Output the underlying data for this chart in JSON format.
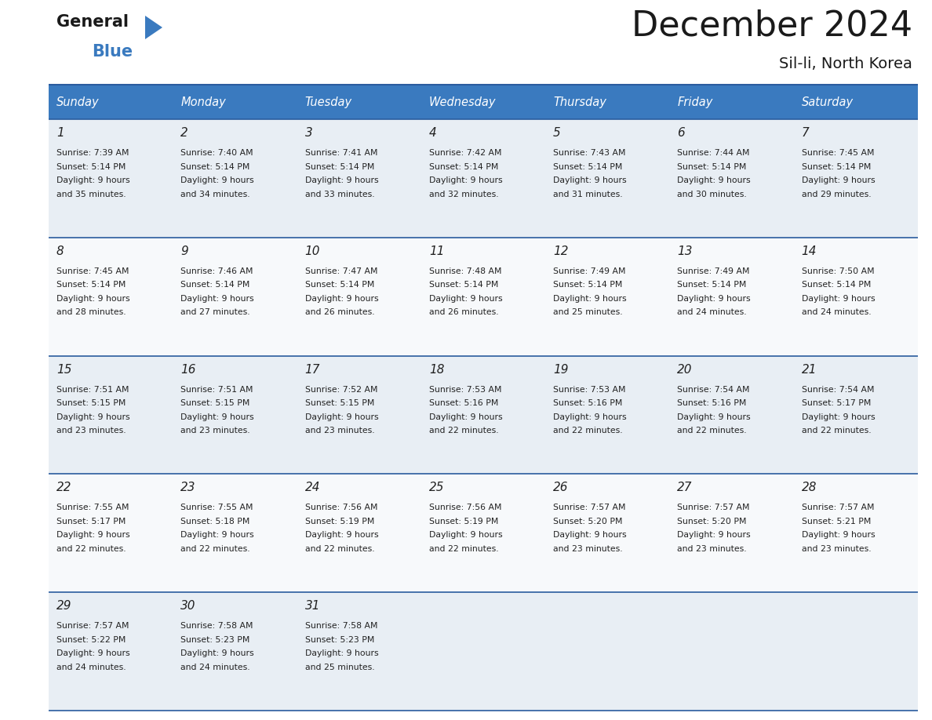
{
  "title": "December 2024",
  "subtitle": "Sil-li, North Korea",
  "header_color": "#3a7abf",
  "header_text_color": "#ffffff",
  "cell_bg_even": "#e8eef4",
  "cell_bg_odd": "#f7f9fb",
  "border_color": "#2a5c9e",
  "text_color": "#222222",
  "days_of_week": [
    "Sunday",
    "Monday",
    "Tuesday",
    "Wednesday",
    "Thursday",
    "Friday",
    "Saturday"
  ],
  "weeks": [
    [
      {
        "day": 1,
        "sunrise": "7:39 AM",
        "sunset": "5:14 PM",
        "daylight_line1": "Daylight: 9 hours",
        "daylight_line2": "and 35 minutes."
      },
      {
        "day": 2,
        "sunrise": "7:40 AM",
        "sunset": "5:14 PM",
        "daylight_line1": "Daylight: 9 hours",
        "daylight_line2": "and 34 minutes."
      },
      {
        "day": 3,
        "sunrise": "7:41 AM",
        "sunset": "5:14 PM",
        "daylight_line1": "Daylight: 9 hours",
        "daylight_line2": "and 33 minutes."
      },
      {
        "day": 4,
        "sunrise": "7:42 AM",
        "sunset": "5:14 PM",
        "daylight_line1": "Daylight: 9 hours",
        "daylight_line2": "and 32 minutes."
      },
      {
        "day": 5,
        "sunrise": "7:43 AM",
        "sunset": "5:14 PM",
        "daylight_line1": "Daylight: 9 hours",
        "daylight_line2": "and 31 minutes."
      },
      {
        "day": 6,
        "sunrise": "7:44 AM",
        "sunset": "5:14 PM",
        "daylight_line1": "Daylight: 9 hours",
        "daylight_line2": "and 30 minutes."
      },
      {
        "day": 7,
        "sunrise": "7:45 AM",
        "sunset": "5:14 PM",
        "daylight_line1": "Daylight: 9 hours",
        "daylight_line2": "and 29 minutes."
      }
    ],
    [
      {
        "day": 8,
        "sunrise": "7:45 AM",
        "sunset": "5:14 PM",
        "daylight_line1": "Daylight: 9 hours",
        "daylight_line2": "and 28 minutes."
      },
      {
        "day": 9,
        "sunrise": "7:46 AM",
        "sunset": "5:14 PM",
        "daylight_line1": "Daylight: 9 hours",
        "daylight_line2": "and 27 minutes."
      },
      {
        "day": 10,
        "sunrise": "7:47 AM",
        "sunset": "5:14 PM",
        "daylight_line1": "Daylight: 9 hours",
        "daylight_line2": "and 26 minutes."
      },
      {
        "day": 11,
        "sunrise": "7:48 AM",
        "sunset": "5:14 PM",
        "daylight_line1": "Daylight: 9 hours",
        "daylight_line2": "and 26 minutes."
      },
      {
        "day": 12,
        "sunrise": "7:49 AM",
        "sunset": "5:14 PM",
        "daylight_line1": "Daylight: 9 hours",
        "daylight_line2": "and 25 minutes."
      },
      {
        "day": 13,
        "sunrise": "7:49 AM",
        "sunset": "5:14 PM",
        "daylight_line1": "Daylight: 9 hours",
        "daylight_line2": "and 24 minutes."
      },
      {
        "day": 14,
        "sunrise": "7:50 AM",
        "sunset": "5:14 PM",
        "daylight_line1": "Daylight: 9 hours",
        "daylight_line2": "and 24 minutes."
      }
    ],
    [
      {
        "day": 15,
        "sunrise": "7:51 AM",
        "sunset": "5:15 PM",
        "daylight_line1": "Daylight: 9 hours",
        "daylight_line2": "and 23 minutes."
      },
      {
        "day": 16,
        "sunrise": "7:51 AM",
        "sunset": "5:15 PM",
        "daylight_line1": "Daylight: 9 hours",
        "daylight_line2": "and 23 minutes."
      },
      {
        "day": 17,
        "sunrise": "7:52 AM",
        "sunset": "5:15 PM",
        "daylight_line1": "Daylight: 9 hours",
        "daylight_line2": "and 23 minutes."
      },
      {
        "day": 18,
        "sunrise": "7:53 AM",
        "sunset": "5:16 PM",
        "daylight_line1": "Daylight: 9 hours",
        "daylight_line2": "and 22 minutes."
      },
      {
        "day": 19,
        "sunrise": "7:53 AM",
        "sunset": "5:16 PM",
        "daylight_line1": "Daylight: 9 hours",
        "daylight_line2": "and 22 minutes."
      },
      {
        "day": 20,
        "sunrise": "7:54 AM",
        "sunset": "5:16 PM",
        "daylight_line1": "Daylight: 9 hours",
        "daylight_line2": "and 22 minutes."
      },
      {
        "day": 21,
        "sunrise": "7:54 AM",
        "sunset": "5:17 PM",
        "daylight_line1": "Daylight: 9 hours",
        "daylight_line2": "and 22 minutes."
      }
    ],
    [
      {
        "day": 22,
        "sunrise": "7:55 AM",
        "sunset": "5:17 PM",
        "daylight_line1": "Daylight: 9 hours",
        "daylight_line2": "and 22 minutes."
      },
      {
        "day": 23,
        "sunrise": "7:55 AM",
        "sunset": "5:18 PM",
        "daylight_line1": "Daylight: 9 hours",
        "daylight_line2": "and 22 minutes."
      },
      {
        "day": 24,
        "sunrise": "7:56 AM",
        "sunset": "5:19 PM",
        "daylight_line1": "Daylight: 9 hours",
        "daylight_line2": "and 22 minutes."
      },
      {
        "day": 25,
        "sunrise": "7:56 AM",
        "sunset": "5:19 PM",
        "daylight_line1": "Daylight: 9 hours",
        "daylight_line2": "and 22 minutes."
      },
      {
        "day": 26,
        "sunrise": "7:57 AM",
        "sunset": "5:20 PM",
        "daylight_line1": "Daylight: 9 hours",
        "daylight_line2": "and 23 minutes."
      },
      {
        "day": 27,
        "sunrise": "7:57 AM",
        "sunset": "5:20 PM",
        "daylight_line1": "Daylight: 9 hours",
        "daylight_line2": "and 23 minutes."
      },
      {
        "day": 28,
        "sunrise": "7:57 AM",
        "sunset": "5:21 PM",
        "daylight_line1": "Daylight: 9 hours",
        "daylight_line2": "and 23 minutes."
      }
    ],
    [
      {
        "day": 29,
        "sunrise": "7:57 AM",
        "sunset": "5:22 PM",
        "daylight_line1": "Daylight: 9 hours",
        "daylight_line2": "and 24 minutes."
      },
      {
        "day": 30,
        "sunrise": "7:58 AM",
        "sunset": "5:23 PM",
        "daylight_line1": "Daylight: 9 hours",
        "daylight_line2": "and 24 minutes."
      },
      {
        "day": 31,
        "sunrise": "7:58 AM",
        "sunset": "5:23 PM",
        "daylight_line1": "Daylight: 9 hours",
        "daylight_line2": "and 25 minutes."
      },
      null,
      null,
      null,
      null
    ]
  ]
}
